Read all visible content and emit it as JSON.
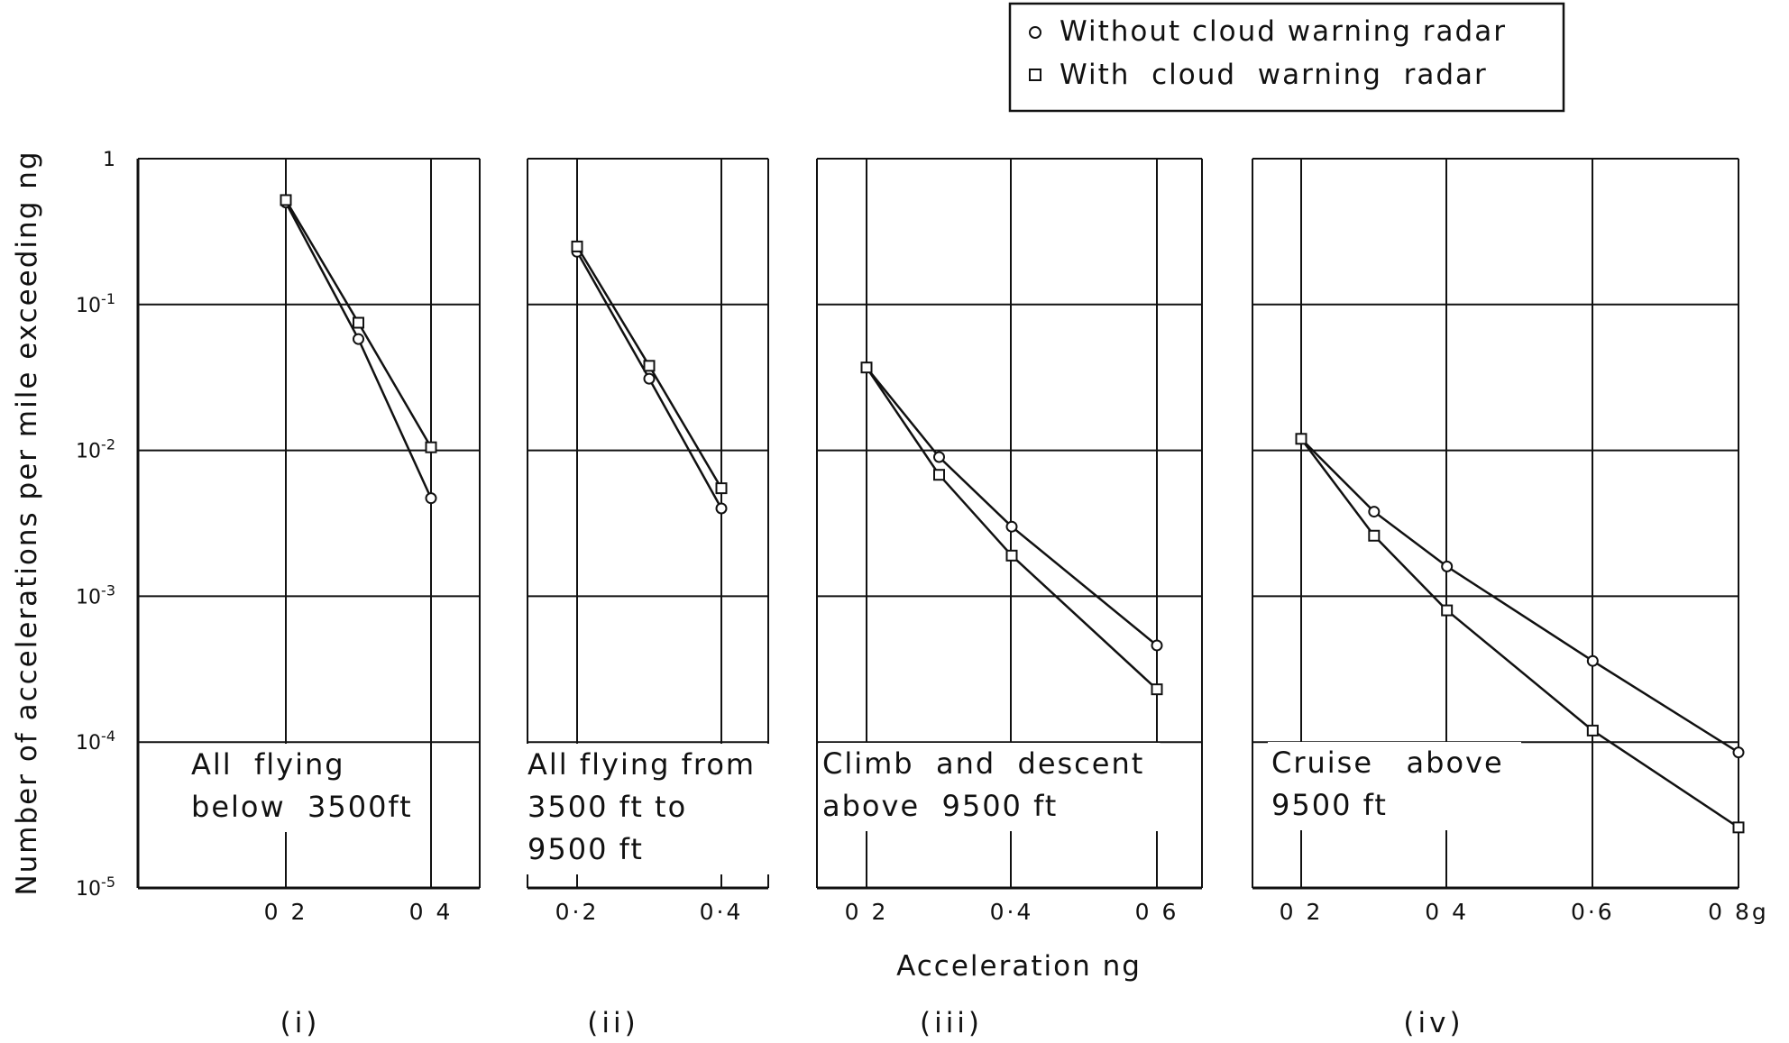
{
  "figure": {
    "ylabel": "Number of accelerations per mile exceeding ng",
    "xlabel": "Acceleration ng",
    "legend": [
      {
        "marker": "circle",
        "label": "Without cloud warning radar"
      },
      {
        "marker": "square",
        "label": "With  cloud  warning  radar"
      }
    ],
    "y_tick_labels": [
      "1",
      "10-1",
      "10-2",
      "10-3",
      "10-4",
      "10-5"
    ],
    "colors": {
      "ink": "#111111",
      "background": "#ffffff"
    }
  },
  "chart_data": [
    {
      "type": "line",
      "panel_label": "(i)",
      "annotation": [
        "All  flying",
        "below  3500ft"
      ],
      "y_scale": "log",
      "ylim": [
        1e-05,
        1
      ],
      "xlim": [
        0.2,
        0.4
      ],
      "x_ticks": [
        0.2,
        0.4
      ],
      "x_tick_labels": [
        "0 2",
        "0 4"
      ],
      "series": [
        {
          "name": "Without cloud warning radar",
          "marker": "circle",
          "x": [
            0.2,
            0.3,
            0.4
          ],
          "y": [
            0.5,
            0.058,
            0.0047
          ]
        },
        {
          "name": "With  cloud  warning  radar",
          "marker": "square",
          "x": [
            0.2,
            0.3,
            0.4
          ],
          "y": [
            0.52,
            0.075,
            0.0105
          ]
        }
      ]
    },
    {
      "type": "line",
      "panel_label": "(ii)",
      "annotation": [
        "All flying from",
        "3500 ft to",
        "9500 ft"
      ],
      "y_scale": "log",
      "ylim": [
        1e-05,
        1
      ],
      "xlim": [
        0.2,
        0.4
      ],
      "x_ticks": [
        0.2,
        0.4
      ],
      "x_tick_labels": [
        "0·2",
        "0·4"
      ],
      "series": [
        {
          "name": "Without cloud warning radar",
          "marker": "circle",
          "x": [
            0.2,
            0.3,
            0.4
          ],
          "y": [
            0.23,
            0.031,
            0.004
          ]
        },
        {
          "name": "With  cloud  warning  radar",
          "marker": "square",
          "x": [
            0.2,
            0.3,
            0.4
          ],
          "y": [
            0.25,
            0.038,
            0.0055
          ]
        }
      ]
    },
    {
      "type": "line",
      "panel_label": "(iii)",
      "annotation": [
        "Climb  and  descent",
        "above  9500 ft"
      ],
      "y_scale": "log",
      "ylim": [
        1e-05,
        1
      ],
      "xlim": [
        0.2,
        0.6
      ],
      "x_ticks": [
        0.2,
        0.4,
        0.6
      ],
      "x_tick_labels": [
        "0 2",
        "0·4",
        "0 6"
      ],
      "series": [
        {
          "name": "Without cloud warning radar",
          "marker": "circle",
          "x": [
            0.2,
            0.3,
            0.4,
            0.6
          ],
          "y": [
            0.037,
            0.009,
            0.003,
            0.00046
          ]
        },
        {
          "name": "With  cloud  warning  radar",
          "marker": "square",
          "x": [
            0.2,
            0.3,
            0.4,
            0.6
          ],
          "y": [
            0.037,
            0.0068,
            0.0019,
            0.00023
          ]
        }
      ]
    },
    {
      "type": "line",
      "panel_label": "(iv)",
      "annotation": [
        "Cruise   above",
        "9500 ft"
      ],
      "y_scale": "log",
      "ylim": [
        1e-05,
        1
      ],
      "xlim": [
        0.2,
        0.8
      ],
      "x_ticks": [
        0.2,
        0.4,
        0.6,
        0.8
      ],
      "x_tick_labels": [
        "0 2",
        "0 4",
        "0·6",
        "0 8g"
      ],
      "series": [
        {
          "name": "Without cloud warning radar",
          "marker": "circle",
          "x": [
            0.2,
            0.3,
            0.4,
            0.6,
            0.8
          ],
          "y": [
            0.012,
            0.0038,
            0.0016,
            0.00036,
            8.5e-05
          ]
        },
        {
          "name": "With  cloud  warning  radar",
          "marker": "square",
          "x": [
            0.2,
            0.3,
            0.4,
            0.6,
            0.8
          ],
          "y": [
            0.012,
            0.0026,
            0.0008,
            0.00012,
            2.6e-05
          ]
        }
      ]
    }
  ]
}
